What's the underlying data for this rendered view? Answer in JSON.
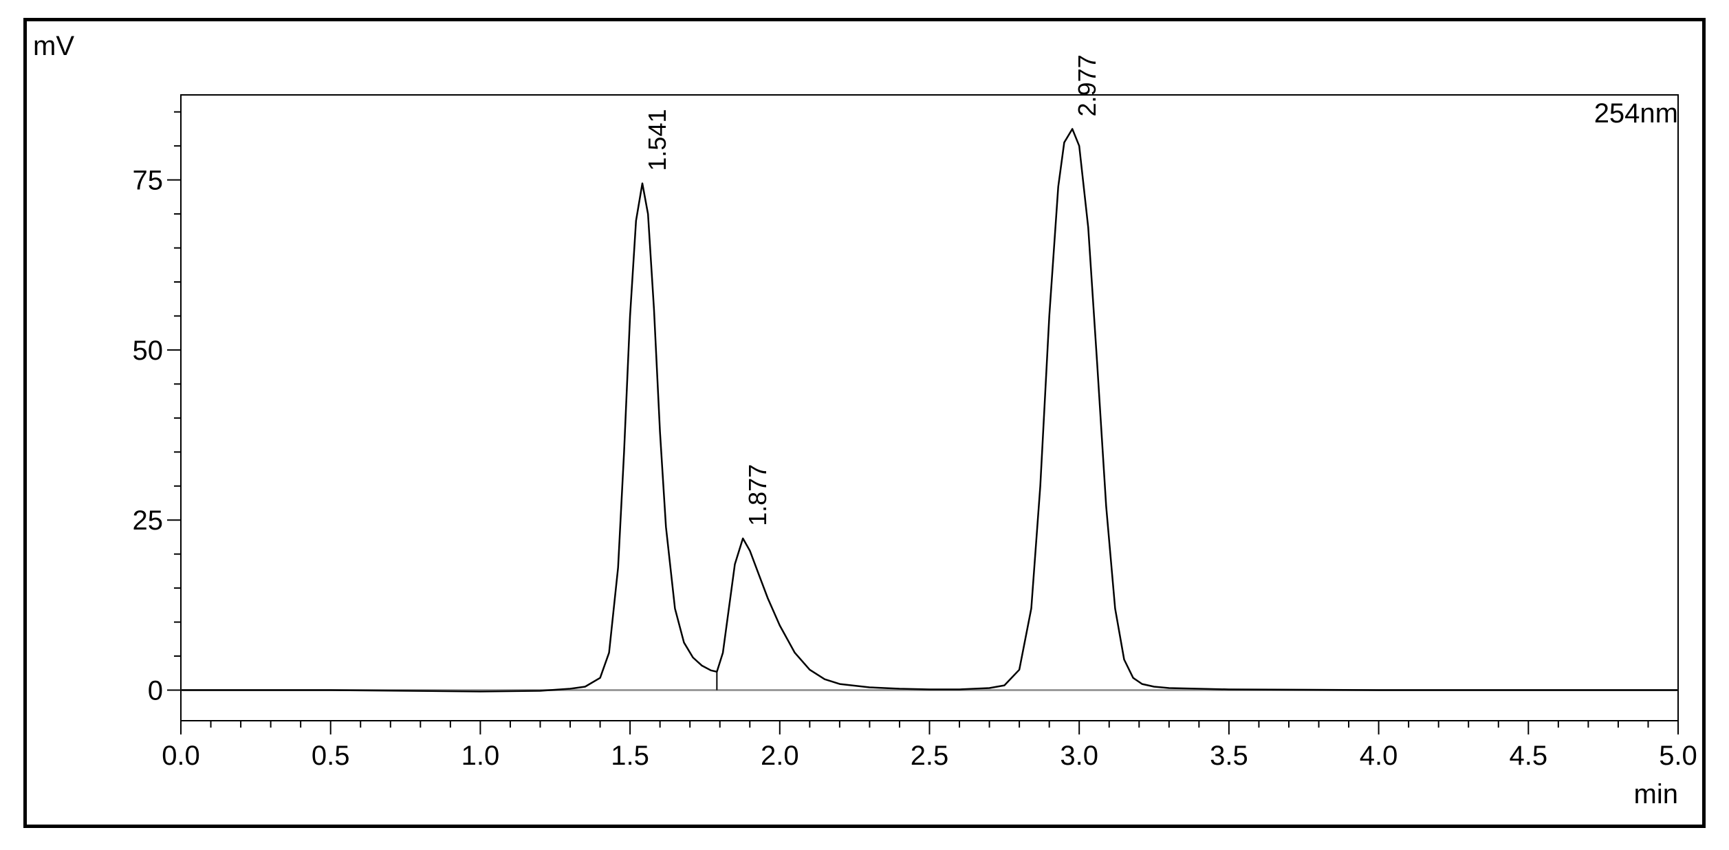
{
  "chart_data": {
    "type": "line",
    "xlabel": "min",
    "ylabel": "mV",
    "channel_label": "254nm",
    "xlim": [
      0.0,
      5.0
    ],
    "ylim": [
      -4.5,
      87.5
    ],
    "x_ticks_major": [
      0.0,
      0.5,
      1.0,
      1.5,
      2.0,
      2.5,
      3.0,
      3.5,
      4.0,
      4.5,
      5.0
    ],
    "x_tick_labels": [
      "0.0",
      "0.5",
      "1.0",
      "1.5",
      "2.0",
      "2.5",
      "3.0",
      "3.5",
      "4.0",
      "4.5",
      "5.0"
    ],
    "x_minor_step": 0.1,
    "y_ticks_major": [
      0,
      25,
      50,
      75
    ],
    "y_tick_labels": [
      "0",
      "25",
      "50",
      "75"
    ],
    "y_minor_step": 5,
    "grid": false,
    "legend": "none",
    "colors": {
      "signal": "#000000",
      "baseline": "#9a9a9a",
      "axes": "#000000"
    },
    "peaks": [
      {
        "label": "1.541",
        "retention_time": 1.541,
        "height": 74.5
      },
      {
        "label": "1.877",
        "retention_time": 1.877,
        "height": 22.3
      },
      {
        "label": "2.977",
        "retention_time": 2.977,
        "height": 82.5
      }
    ],
    "series": [
      {
        "x": [
          0.0,
          0.5,
          1.0,
          1.2,
          1.3,
          1.35,
          1.4,
          1.43,
          1.46,
          1.48,
          1.5,
          1.52,
          1.541,
          1.56,
          1.58,
          1.6,
          1.62,
          1.65,
          1.68,
          1.71,
          1.74,
          1.77,
          1.79,
          1.81,
          1.83,
          1.85,
          1.877,
          1.9,
          1.93,
          1.96,
          2.0,
          2.05,
          2.1,
          2.15,
          2.2,
          2.3,
          2.4,
          2.5,
          2.6,
          2.7,
          2.75,
          2.8,
          2.84,
          2.87,
          2.9,
          2.93,
          2.95,
          2.977,
          3.0,
          3.03,
          3.06,
          3.09,
          3.12,
          3.15,
          3.18,
          3.21,
          3.25,
          3.3,
          3.5,
          4.0,
          4.5,
          5.0
        ],
        "y": [
          0,
          0,
          -0.2,
          -0.1,
          0.2,
          0.5,
          1.8,
          5.5,
          18,
          35,
          55,
          69,
          74.5,
          70,
          56,
          38,
          24,
          12,
          7,
          4.8,
          3.6,
          2.9,
          2.7,
          5.5,
          12,
          18.5,
          22.3,
          20.5,
          17,
          13.5,
          9.5,
          5.5,
          3,
          1.6,
          0.9,
          0.4,
          0.2,
          0.1,
          0.1,
          0.3,
          0.7,
          3,
          12,
          30,
          55,
          74,
          80.5,
          82.5,
          80,
          68,
          48,
          27,
          12,
          4.5,
          1.8,
          0.9,
          0.5,
          0.3,
          0.1,
          0,
          0,
          0
        ]
      }
    ],
    "integration_marker_x": 1.79
  }
}
